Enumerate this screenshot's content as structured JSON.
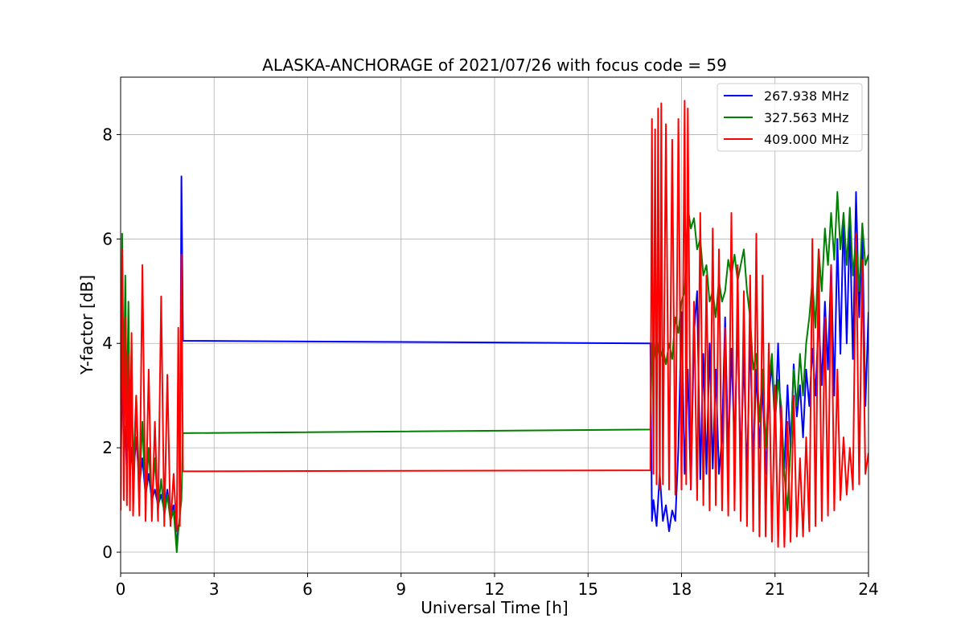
{
  "chart_data": {
    "type": "line",
    "title": "ALASKA-ANCHORAGE of 2021/07/26 with focus code = 59",
    "xlabel": "Universal Time [h]",
    "ylabel": "Y-factor [dB]",
    "xlim": [
      0,
      24
    ],
    "ylim": [
      -0.4,
      9.1
    ],
    "xticks": [
      0,
      3,
      6,
      9,
      12,
      15,
      18,
      21,
      24
    ],
    "yticks": [
      0,
      2,
      4,
      6,
      8
    ],
    "grid": true,
    "legend_position": "top-right",
    "series": [
      {
        "name": "267.938 MHz",
        "color": "#0000ff",
        "x": [
          0.0,
          0.05,
          0.1,
          0.15,
          0.2,
          0.25,
          0.3,
          0.35,
          0.4,
          0.5,
          0.6,
          0.7,
          0.8,
          0.9,
          1.0,
          1.1,
          1.2,
          1.3,
          1.4,
          1.5,
          1.6,
          1.7,
          1.8,
          1.85,
          1.9,
          1.95,
          2.0,
          17.0,
          17.05,
          17.1,
          17.2,
          17.3,
          17.4,
          17.5,
          17.6,
          17.7,
          17.8,
          17.9,
          18.0,
          18.1,
          18.2,
          18.3,
          18.4,
          18.5,
          18.6,
          18.7,
          18.8,
          18.9,
          19.0,
          19.1,
          19.2,
          19.3,
          19.4,
          19.5,
          19.6,
          19.7,
          19.8,
          19.9,
          20.0,
          20.1,
          20.2,
          20.3,
          20.4,
          20.5,
          20.6,
          20.7,
          20.8,
          20.9,
          21.0,
          21.1,
          21.2,
          21.3,
          21.4,
          21.5,
          21.6,
          21.7,
          21.8,
          21.9,
          22.0,
          22.1,
          22.2,
          22.3,
          22.4,
          22.5,
          22.6,
          22.7,
          22.8,
          22.9,
          23.0,
          23.1,
          23.2,
          23.3,
          23.4,
          23.5,
          23.6,
          23.7,
          23.8,
          23.9,
          24.0
        ],
        "y": [
          1.0,
          4.0,
          1.8,
          2.4,
          1.5,
          2.6,
          1.6,
          2.0,
          1.4,
          2.2,
          1.3,
          1.8,
          1.1,
          1.5,
          1.0,
          1.2,
          0.9,
          1.1,
          0.8,
          1.2,
          0.7,
          0.9,
          0.1,
          0.5,
          0.6,
          7.2,
          4.05,
          4.0,
          0.6,
          1.0,
          0.5,
          1.5,
          0.6,
          0.9,
          0.4,
          0.8,
          0.6,
          2.0,
          4.6,
          1.5,
          3.5,
          1.2,
          4.2,
          5.0,
          1.4,
          3.8,
          1.5,
          4.0,
          1.6,
          3.5,
          1.5,
          2.2,
          4.5,
          1.8,
          3.9,
          2.0,
          4.5,
          1.6,
          3.8,
          1.4,
          4.2,
          1.7,
          3.5,
          2.0,
          3.2,
          1.5,
          3.0,
          3.6,
          2.4,
          4.0,
          2.2,
          1.6,
          3.2,
          2.0,
          3.6,
          2.6,
          3.2,
          2.2,
          3.5,
          2.8,
          3.9,
          3.0,
          4.5,
          3.2,
          4.8,
          3.5,
          5.5,
          3.0,
          6.0,
          3.8,
          6.5,
          4.0,
          6.3,
          3.7,
          6.9,
          4.5,
          6.2,
          2.8,
          4.6
        ]
      },
      {
        "name": "327.563 MHz",
        "color": "#008000",
        "x": [
          0.0,
          0.05,
          0.1,
          0.15,
          0.2,
          0.25,
          0.3,
          0.35,
          0.4,
          0.5,
          0.6,
          0.7,
          0.8,
          0.9,
          1.0,
          1.1,
          1.2,
          1.3,
          1.4,
          1.5,
          1.6,
          1.7,
          1.8,
          1.85,
          1.9,
          1.95,
          2.0,
          17.0,
          17.05,
          17.1,
          17.2,
          17.3,
          17.4,
          17.5,
          17.6,
          17.7,
          17.8,
          17.9,
          18.0,
          18.1,
          18.2,
          18.3,
          18.4,
          18.5,
          18.6,
          18.7,
          18.8,
          18.9,
          19.0,
          19.1,
          19.2,
          19.3,
          19.4,
          19.5,
          19.6,
          19.7,
          19.8,
          19.9,
          20.0,
          20.1,
          20.2,
          20.3,
          20.4,
          20.5,
          20.6,
          20.7,
          20.8,
          20.9,
          21.0,
          21.1,
          21.2,
          21.3,
          21.4,
          21.5,
          21.6,
          21.7,
          21.8,
          21.9,
          22.0,
          22.1,
          22.2,
          22.3,
          22.4,
          22.5,
          22.6,
          22.7,
          22.8,
          22.9,
          23.0,
          23.1,
          23.2,
          23.3,
          23.4,
          23.5,
          23.6,
          23.7,
          23.8,
          23.9,
          24.0
        ],
        "y": [
          1.0,
          6.1,
          3.0,
          5.3,
          2.5,
          4.8,
          2.2,
          4.0,
          1.5,
          3.0,
          1.2,
          2.5,
          1.0,
          2.0,
          0.9,
          1.8,
          0.8,
          1.4,
          0.7,
          1.1,
          0.6,
          0.8,
          0.0,
          0.4,
          0.7,
          1.0,
          2.28,
          2.35,
          4.0,
          3.6,
          4.1,
          3.7,
          3.9,
          3.6,
          4.0,
          3.7,
          4.5,
          4.2,
          4.8,
          5.0,
          6.6,
          6.2,
          6.4,
          5.8,
          6.0,
          5.3,
          5.5,
          4.8,
          5.0,
          4.5,
          5.2,
          4.8,
          5.0,
          5.6,
          5.3,
          5.7,
          5.2,
          5.5,
          5.8,
          5.0,
          4.5,
          3.5,
          3.8,
          2.5,
          3.5,
          2.0,
          3.2,
          3.8,
          2.5,
          3.3,
          2.8,
          1.5,
          0.8,
          2.0,
          3.5,
          2.8,
          3.8,
          3.0,
          4.0,
          4.5,
          5.2,
          4.3,
          5.8,
          5.0,
          6.2,
          5.5,
          6.5,
          5.6,
          6.9,
          5.8,
          6.5,
          5.5,
          6.6,
          5.3,
          6.0,
          5.0,
          6.3,
          5.5,
          5.7
        ]
      },
      {
        "name": "409.000 MHz",
        "color": "#ff0000",
        "x": [
          0.0,
          0.05,
          0.1,
          0.15,
          0.2,
          0.25,
          0.3,
          0.35,
          0.4,
          0.5,
          0.6,
          0.7,
          0.8,
          0.9,
          1.0,
          1.1,
          1.2,
          1.3,
          1.4,
          1.5,
          1.6,
          1.7,
          1.8,
          1.85,
          1.9,
          1.95,
          2.0,
          17.0,
          17.05,
          17.1,
          17.15,
          17.2,
          17.25,
          17.3,
          17.35,
          17.4,
          17.5,
          17.6,
          17.7,
          17.8,
          17.9,
          18.0,
          18.1,
          18.15,
          18.2,
          18.3,
          18.4,
          18.5,
          18.6,
          18.7,
          18.8,
          18.9,
          19.0,
          19.1,
          19.2,
          19.3,
          19.4,
          19.5,
          19.6,
          19.7,
          19.8,
          19.9,
          20.0,
          20.1,
          20.2,
          20.3,
          20.4,
          20.5,
          20.6,
          20.7,
          20.8,
          20.9,
          21.0,
          21.1,
          21.2,
          21.3,
          21.4,
          21.5,
          21.6,
          21.7,
          21.8,
          21.9,
          22.0,
          22.1,
          22.2,
          22.3,
          22.4,
          22.5,
          22.6,
          22.7,
          22.8,
          22.9,
          23.0,
          23.1,
          23.2,
          23.3,
          23.4,
          23.5,
          23.6,
          23.7,
          23.8,
          23.9,
          24.0
        ],
        "y": [
          0.8,
          5.8,
          1.0,
          4.5,
          0.9,
          3.8,
          0.8,
          4.2,
          0.7,
          3.0,
          0.7,
          5.5,
          0.6,
          3.5,
          0.6,
          2.5,
          0.6,
          4.9,
          0.5,
          3.4,
          0.5,
          1.5,
          0.4,
          4.3,
          0.5,
          5.7,
          1.55,
          1.57,
          8.3,
          1.5,
          8.1,
          1.3,
          8.5,
          1.2,
          8.6,
          1.3,
          8.2,
          1.2,
          7.9,
          1.1,
          8.3,
          1.2,
          8.65,
          1.3,
          8.5,
          1.2,
          4.8,
          1.0,
          6.5,
          0.9,
          5.3,
          0.8,
          6.2,
          0.9,
          5.8,
          0.8,
          4.3,
          0.7,
          6.5,
          0.8,
          5.5,
          0.6,
          5.0,
          0.5,
          5.3,
          0.4,
          6.1,
          0.3,
          5.3,
          0.3,
          4.0,
          0.2,
          3.2,
          0.1,
          2.8,
          0.1,
          2.5,
          0.2,
          3.0,
          0.3,
          1.8,
          0.3,
          2.2,
          0.4,
          6.0,
          0.5,
          5.8,
          0.6,
          4.5,
          0.7,
          5.5,
          0.8,
          3.5,
          1.0,
          2.2,
          1.1,
          2.0,
          1.2,
          6.1,
          1.3,
          5.6,
          1.5,
          1.9
        ]
      }
    ]
  }
}
